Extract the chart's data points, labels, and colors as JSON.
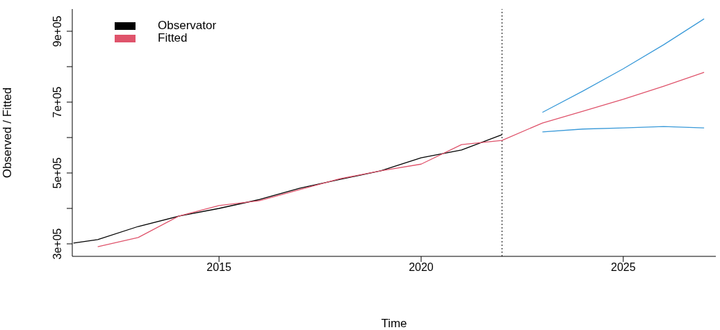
{
  "chart_data": {
    "type": "line",
    "xlabel": "Time",
    "ylabel": "Observed / Fitted",
    "xlim": [
      2011.37,
      2027.29
    ],
    "xticks": [
      2015,
      2020,
      2025
    ],
    "ylim": [
      264700,
      962700
    ],
    "yticks": [
      {
        "value": 300000,
        "label": "3e+05"
      },
      {
        "value": 400000,
        "label": null
      },
      {
        "value": 500000,
        "label": "5e+05"
      },
      {
        "value": 600000,
        "label": null
      },
      {
        "value": 700000,
        "label": "7e+05"
      },
      {
        "value": 800000,
        "label": null
      },
      {
        "value": 900000,
        "label": "9e+05"
      }
    ],
    "series": [
      {
        "name": "Observator",
        "color": "#000000",
        "x": [
          2011.4,
          2012,
          2013,
          2014,
          2015,
          2016,
          2017,
          2018,
          2019,
          2020,
          2021,
          2022
        ],
        "values": [
          302000,
          312000,
          349000,
          378000,
          400000,
          425000,
          457000,
          482000,
          506000,
          543000,
          565000,
          608000
        ]
      },
      {
        "name": "Fitted",
        "color": "#df536b",
        "x": [
          2012,
          2013,
          2014,
          2015,
          2016,
          2017,
          2018,
          2019,
          2020,
          2021,
          2022,
          2023,
          2024,
          2025,
          2026,
          2027
        ],
        "values": [
          292000,
          318000,
          378000,
          408000,
          422000,
          453000,
          484000,
          506000,
          525000,
          580000,
          592000,
          641000,
          674000,
          708000,
          745000,
          784000
        ]
      },
      {
        "color": "#3a9ad9",
        "x": [
          2023,
          2024,
          2025,
          2026,
          2027
        ],
        "values": [
          671000,
          731000,
          794000,
          862000,
          935000
        ]
      },
      {
        "color": "#3a9ad9",
        "x": [
          2023,
          2024,
          2025,
          2026,
          2027
        ],
        "values": [
          616000,
          624000,
          627000,
          631000,
          627000
        ]
      }
    ],
    "ref_lines": [
      {
        "axis": "x",
        "value": 2022,
        "color": "#000000",
        "line_style": "dotted"
      }
    ],
    "legend": "top left",
    "grid": false,
    "marker": "none",
    "line_style": "solid"
  }
}
